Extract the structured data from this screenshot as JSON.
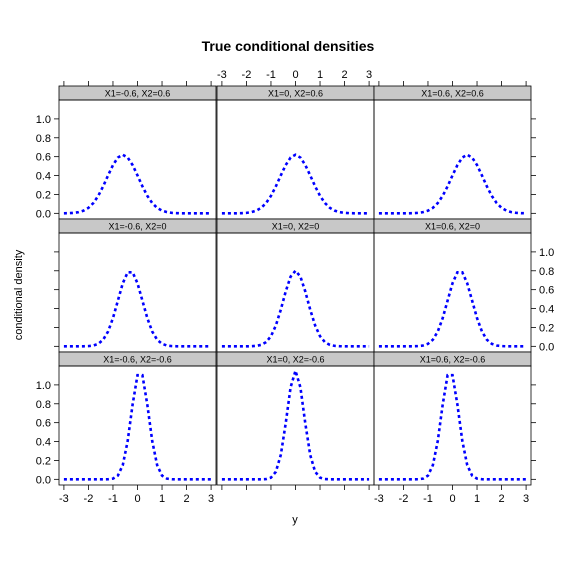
{
  "chart_data": {
    "type": "line",
    "title": "True conditional densities",
    "xlabel": "y",
    "ylabel": "conditional density",
    "xlim": [
      -3.2,
      3.2
    ],
    "ylim": [
      -0.06,
      1.2
    ],
    "x_ticks": [
      "-3",
      "-2",
      "-1",
      "0",
      "1",
      "2",
      "3"
    ],
    "y_ticks": [
      "0.0",
      "0.2",
      "0.4",
      "0.6",
      "0.8",
      "1.0"
    ],
    "grid": false,
    "legend": "none",
    "line_color": "#0000ff",
    "line_style": "dashed",
    "panels": [
      {
        "strip": "X1=-0.6, X2=0.6",
        "mean": -0.6,
        "peak": 0.62
      },
      {
        "strip": "X1=0, X2=0.6",
        "mean": 0.0,
        "peak": 0.62
      },
      {
        "strip": "X1=0.6, X2=0.6",
        "mean": 0.6,
        "peak": 0.62
      },
      {
        "strip": "X1=-0.6, X2=0",
        "mean": -0.3,
        "peak": 0.8
      },
      {
        "strip": "X1=0, X2=0",
        "mean": 0.0,
        "peak": 0.8
      },
      {
        "strip": "X1=0.6, X2=0",
        "mean": 0.3,
        "peak": 0.8
      },
      {
        "strip": "X1=-0.6, X2=-0.6",
        "mean": 0.1,
        "peak": 1.15
      },
      {
        "strip": "X1=0, X2=-0.6",
        "mean": 0.0,
        "peak": 1.15
      },
      {
        "strip": "X1=0.6, X2=-0.6",
        "mean": -0.1,
        "peak": 1.15
      }
    ],
    "x_values": [
      -3.0,
      -2.8,
      -2.6,
      -2.4,
      -2.2,
      -2.0,
      -1.8,
      -1.6,
      -1.4,
      -1.2,
      -1.0,
      -0.8,
      -0.6,
      -0.4,
      -0.2,
      0.0,
      0.2,
      0.4,
      0.6,
      0.8,
      1.0,
      1.2,
      1.4,
      1.6,
      1.8,
      2.0,
      2.2,
      2.4,
      2.6,
      2.8,
      3.0
    ]
  }
}
